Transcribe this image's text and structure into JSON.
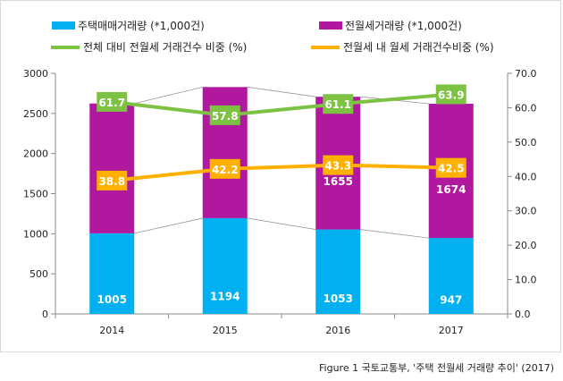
{
  "chart_data": {
    "type": "bar",
    "categories": [
      "2014",
      "2015",
      "2016",
      "2017"
    ],
    "series": [
      {
        "name": "주택매매거래량 (*1,000건)",
        "kind": "stacked-bar",
        "axis": "left",
        "color": "#00B0F0",
        "values": [
          1005,
          1194,
          1053,
          947
        ]
      },
      {
        "name": "전월세거래량 (*1,000건)",
        "kind": "stacked-bar",
        "axis": "left",
        "color": "#B0189F",
        "values": [
          1619,
          1635,
          1655,
          1674
        ]
      },
      {
        "name": "전체 대비 전월세 거래건수 비중 (%)",
        "kind": "line",
        "axis": "right",
        "color": "#7DC242",
        "values": [
          61.7,
          57.8,
          61.1,
          63.9
        ]
      },
      {
        "name": "전월세 내 월세 거래건수비중 (%)",
        "kind": "line",
        "axis": "right",
        "color": "#FFB000",
        "values": [
          38.8,
          42.2,
          43.3,
          42.5
        ]
      }
    ],
    "left_axis": {
      "ylim": [
        0,
        3000
      ],
      "ticks": [
        "0",
        "500",
        "1000",
        "1500",
        "2000",
        "2500",
        "3000"
      ]
    },
    "right_axis": {
      "ylim": [
        0,
        70
      ],
      "ticks": [
        "0.0",
        "10.0",
        "20.0",
        "30.0",
        "40.0",
        "50.0",
        "60.0",
        "70.0"
      ]
    },
    "grid": false,
    "legend_position": "top"
  },
  "caption": "Figure 1 국토교통부, '주택 전월세 거래량 추이' (2017)"
}
